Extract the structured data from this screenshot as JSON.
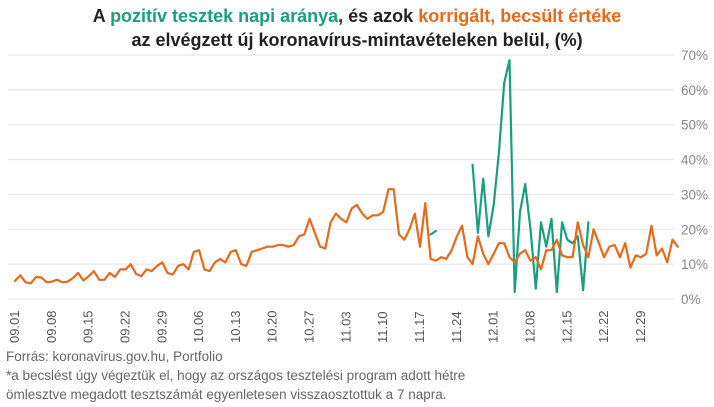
{
  "title": {
    "line1_prefix": "A ",
    "line1_green": "pozitív tesztek napi aránya",
    "line1_mid": ", és azok ",
    "line1_orange": "korrigált, becsült értéke",
    "line2": "az elvégzett új koronavírus-mintavételeken belül,  (%)"
  },
  "footer": {
    "source": "Forrás: koronavirus.gov.hu, Portfolio",
    "note_line1": "*a becslést úgy végeztük el, hogy az országos tesztelési program adott hétre",
    "note_line2": "ömlesztve megadott tesztszámát egyenletesen visszaosztottuk a 7 napra."
  },
  "colors": {
    "green": "#1a9e7f",
    "orange": "#e56a1c"
  },
  "chart_data": {
    "type": "line",
    "ylim": [
      0,
      70
    ],
    "yticks": [
      "0%",
      "10%",
      "20%",
      "30%",
      "40%",
      "50%",
      "60%",
      "70%"
    ],
    "ytick_values": [
      0,
      10,
      20,
      30,
      40,
      50,
      60,
      70
    ],
    "x_count": 124,
    "xticks": [
      {
        "i": 0,
        "label": "09.01"
      },
      {
        "i": 7,
        "label": "09.08"
      },
      {
        "i": 14,
        "label": "09.15"
      },
      {
        "i": 21,
        "label": "09.22"
      },
      {
        "i": 28,
        "label": "09.29"
      },
      {
        "i": 35,
        "label": "10.06"
      },
      {
        "i": 42,
        "label": "10.13"
      },
      {
        "i": 49,
        "label": "10.20"
      },
      {
        "i": 56,
        "label": "10.27"
      },
      {
        "i": 63,
        "label": "11.03"
      },
      {
        "i": 70,
        "label": "11.10"
      },
      {
        "i": 77,
        "label": "11.17"
      },
      {
        "i": 84,
        "label": "11.24"
      },
      {
        "i": 91,
        "label": "12.01"
      },
      {
        "i": 98,
        "label": "12.08"
      },
      {
        "i": 105,
        "label": "12.15"
      },
      {
        "i": 112,
        "label": "12.22"
      },
      {
        "i": 119,
        "label": "12.29"
      }
    ],
    "series": [
      {
        "color": "#1a9e7f",
        "start_index": 79,
        "values": [
          18.5,
          19.5,
          null,
          null,
          null,
          null,
          null,
          null,
          38.5,
          19,
          34.5,
          18,
          27,
          42,
          62,
          68.5,
          2,
          25,
          33,
          20,
          3,
          22,
          15,
          23,
          2,
          22,
          17,
          16,
          18,
          2.5,
          22
        ]
      },
      {
        "color": "#e56a1c",
        "start_index": 0,
        "values": [
          5.2,
          6.8,
          4.8,
          4.5,
          6.3,
          6.2,
          4.8,
          5,
          5.5,
          4.8,
          5,
          6,
          7.5,
          5.3,
          6.5,
          8,
          5.5,
          5.5,
          7.5,
          6.3,
          8.5,
          8.5,
          10,
          7.2,
          6.5,
          8.5,
          8,
          9.5,
          10.5,
          7.5,
          7,
          9.5,
          10,
          8.5,
          13.5,
          14,
          8.5,
          8,
          10.5,
          11.5,
          10.5,
          13.5,
          14,
          10,
          9.5,
          13.5,
          14,
          14.5,
          15,
          15,
          15.5,
          15.5,
          15,
          15.5,
          18,
          18.5,
          23,
          19,
          15,
          14.5,
          22,
          24.5,
          23,
          22,
          26,
          27,
          24.5,
          23,
          24,
          24,
          25,
          31.5,
          31.5,
          18.5,
          17,
          20,
          24.5,
          15,
          27.5,
          11.5,
          11,
          12,
          11.5,
          14,
          18,
          21,
          12,
          10,
          18,
          13,
          10,
          13,
          16,
          16,
          12,
          10.5,
          13,
          14,
          11,
          12,
          8.5,
          14,
          14,
          17,
          12.5,
          12,
          12,
          22,
          15.5,
          12,
          20,
          16,
          12,
          15,
          15.5,
          12,
          16,
          9,
          12.5,
          12,
          13,
          21,
          12.5,
          14.5,
          10.5,
          17,
          15
        ]
      }
    ]
  }
}
